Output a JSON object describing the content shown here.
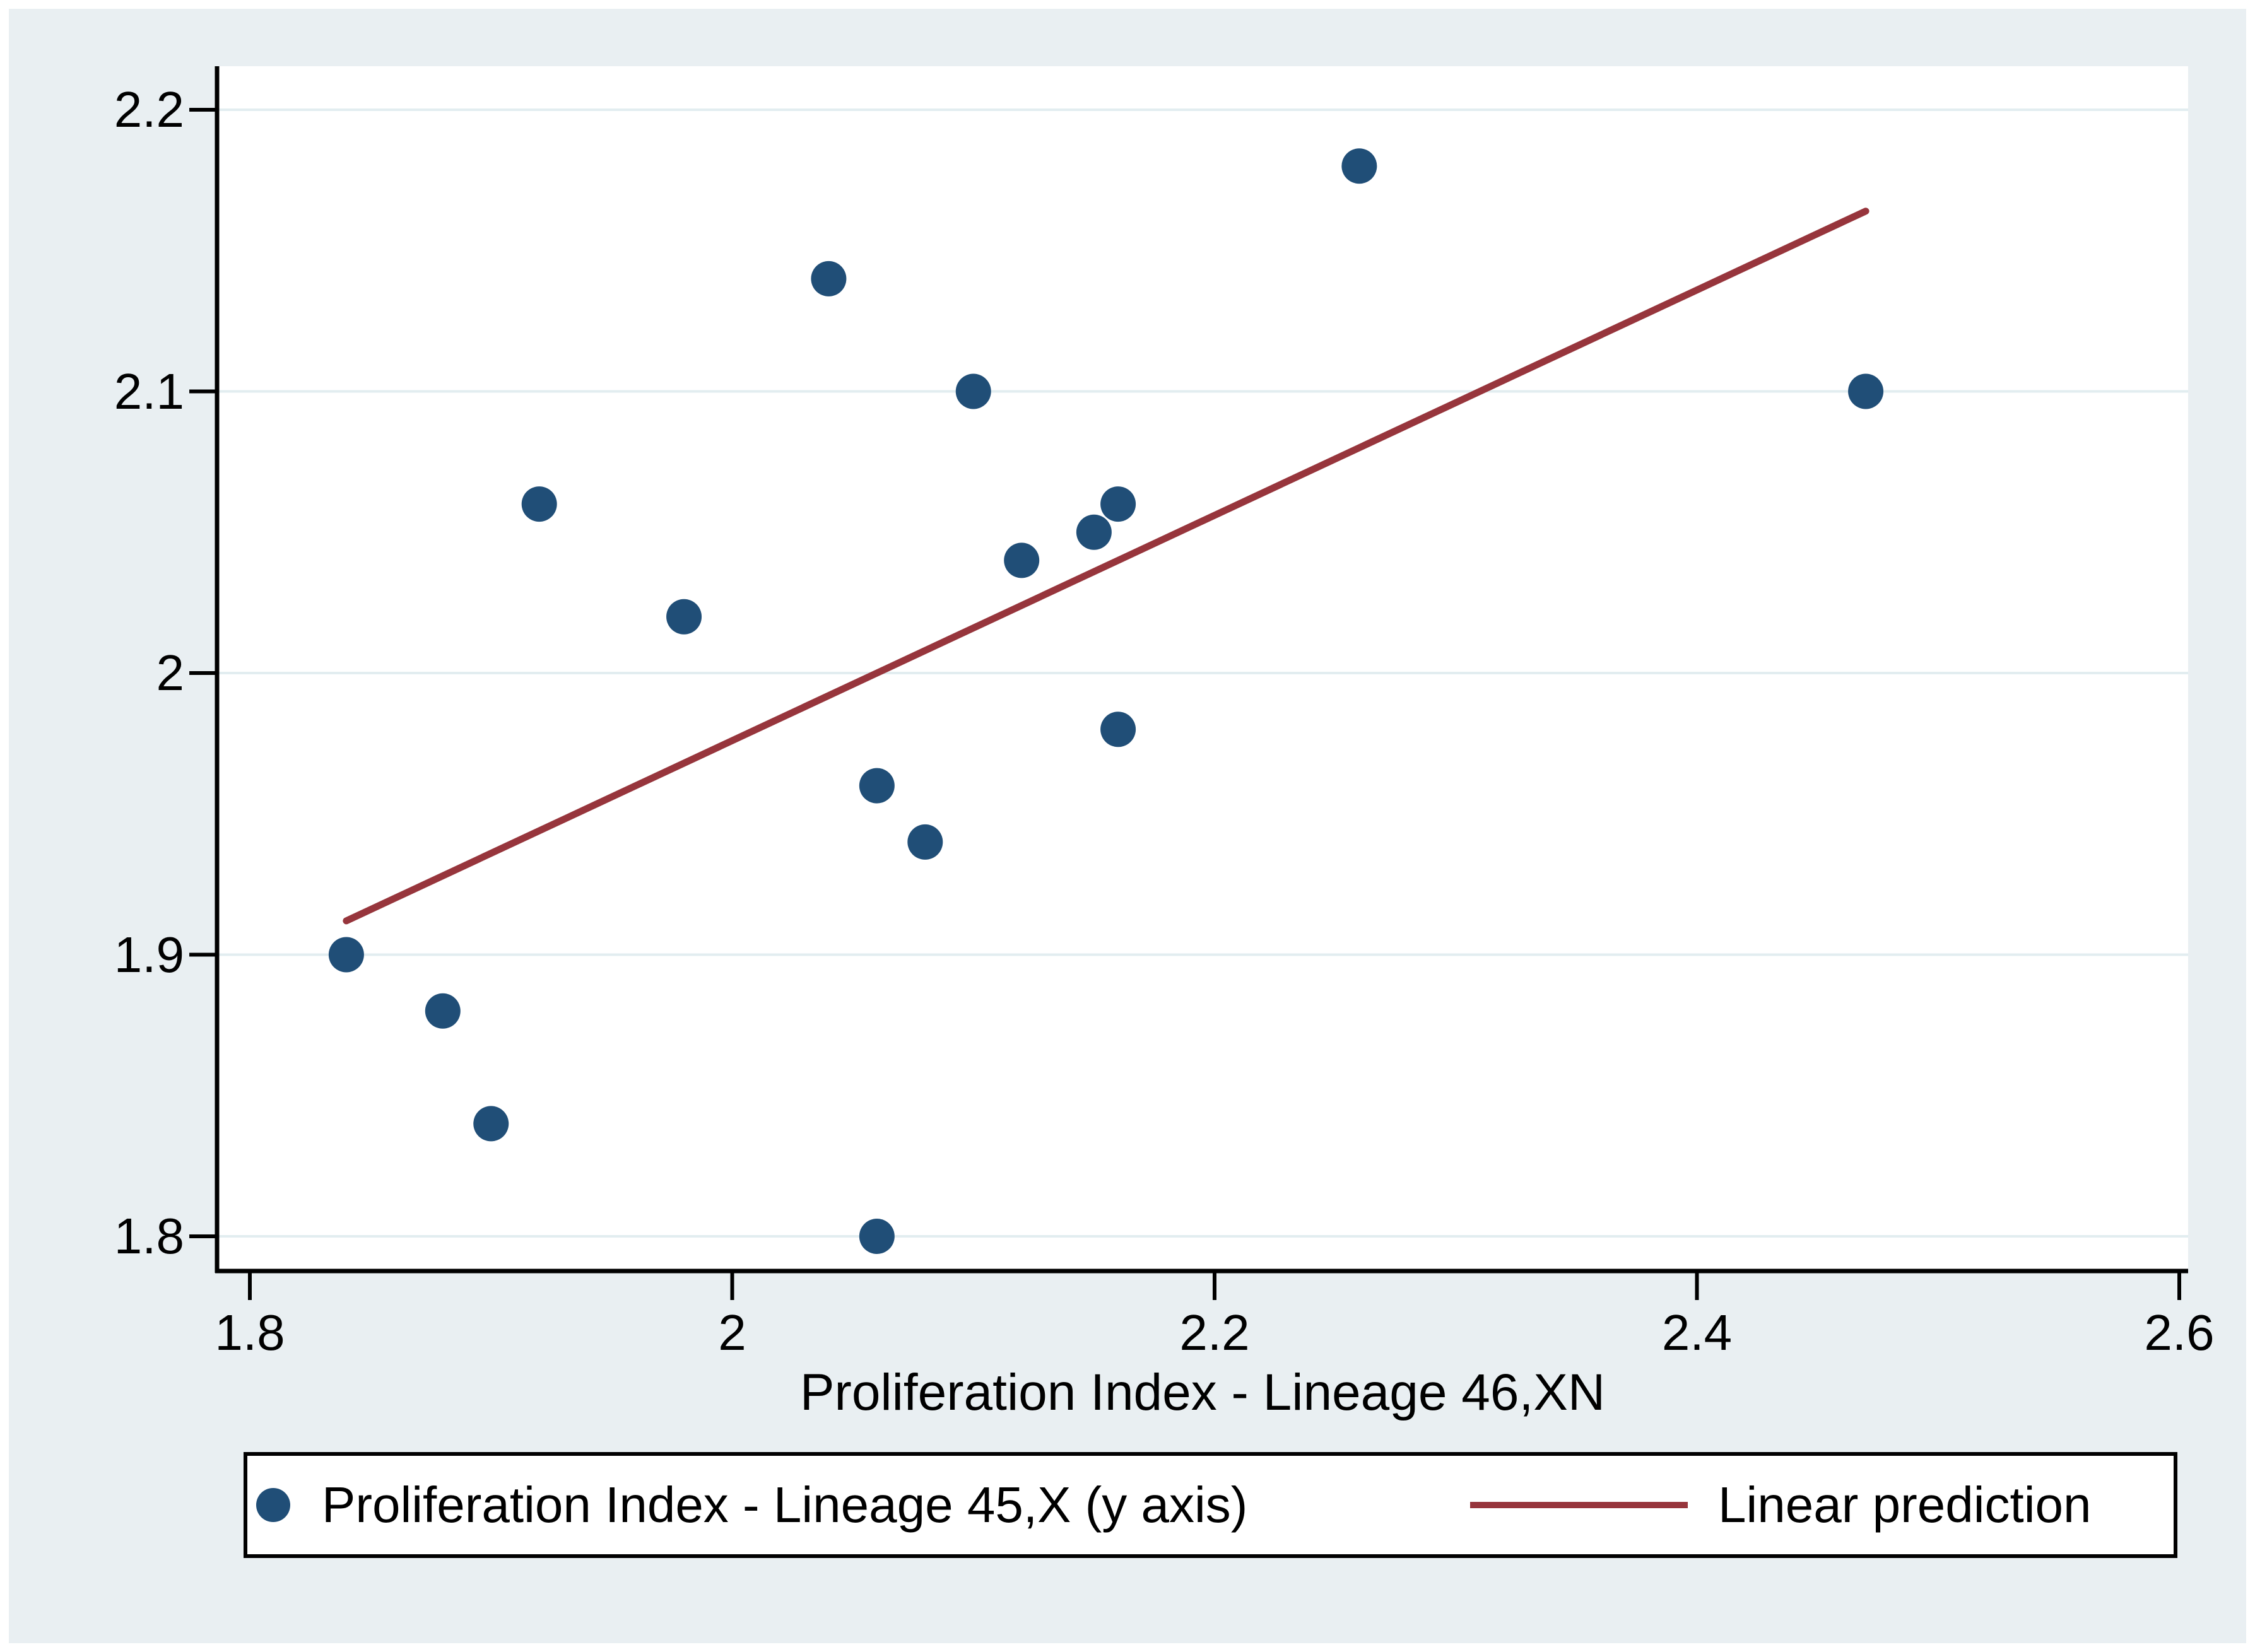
{
  "chart_data": {
    "type": "scatter",
    "title": "",
    "xlabel": "Proliferation Index - Lineage 46,XN",
    "ylabel": "",
    "xlim": [
      1.786,
      2.604
    ],
    "ylim": [
      1.788,
      2.215
    ],
    "grid": "horizontal",
    "x_ticks": [
      {
        "value": 1.8,
        "label": "1.8"
      },
      {
        "value": 2.0,
        "label": "2"
      },
      {
        "value": 2.2,
        "label": "2.2"
      },
      {
        "value": 2.4,
        "label": "2.4"
      },
      {
        "value": 2.6,
        "label": "2.6"
      }
    ],
    "y_ticks": [
      {
        "value": 1.8,
        "label": "1.8"
      },
      {
        "value": 1.9,
        "label": "1.9"
      },
      {
        "value": 2.0,
        "label": "2"
      },
      {
        "value": 2.1,
        "label": "2.1"
      },
      {
        "value": 2.2,
        "label": "2.2"
      }
    ],
    "series": [
      {
        "name": "Proliferation Index - Lineage 45,X (y axis)",
        "type": "scatter",
        "points": [
          {
            "x": 2.26,
            "y": 2.18
          },
          {
            "x": 2.04,
            "y": 2.14
          },
          {
            "x": 2.1,
            "y": 2.1
          },
          {
            "x": 2.47,
            "y": 2.1
          },
          {
            "x": 1.92,
            "y": 2.06
          },
          {
            "x": 2.16,
            "y": 2.06
          },
          {
            "x": 2.15,
            "y": 2.05
          },
          {
            "x": 2.12,
            "y": 2.04
          },
          {
            "x": 1.98,
            "y": 2.02
          },
          {
            "x": 2.16,
            "y": 1.98
          },
          {
            "x": 2.06,
            "y": 1.96
          },
          {
            "x": 2.08,
            "y": 1.94
          },
          {
            "x": 1.84,
            "y": 1.9
          },
          {
            "x": 1.88,
            "y": 1.88
          },
          {
            "x": 1.9,
            "y": 1.84
          },
          {
            "x": 2.06,
            "y": 1.8
          }
        ]
      },
      {
        "name": "Linear prediction",
        "type": "line",
        "endpoints": [
          {
            "x": 1.84,
            "y": 1.912
          },
          {
            "x": 2.47,
            "y": 2.164
          }
        ]
      }
    ],
    "legend": {
      "position": "bottom",
      "entries": [
        {
          "label": "Proliferation Index - Lineage 45,X (y axis)",
          "marker": "circle"
        },
        {
          "label": "Linear prediction",
          "marker": "line"
        }
      ]
    },
    "colors": {
      "background": "#e9eff2",
      "plot_background": "#ffffff",
      "grid": "#e2edf0",
      "axis": "#000000",
      "marker": "#204e77",
      "fit_line": "#97353c"
    }
  }
}
